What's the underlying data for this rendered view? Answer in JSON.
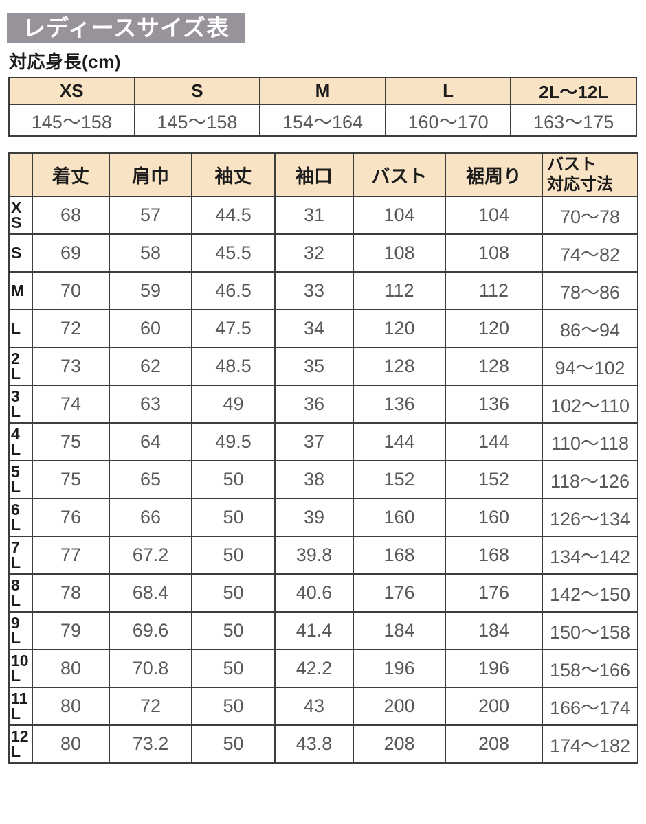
{
  "title": "レディースサイズ表",
  "colors": {
    "banner_bg": "#98939b",
    "banner_text": "#ffffff",
    "header_bg": "#f8e3c4",
    "border": "#3d3d3d",
    "value_text": "#595959",
    "label_text": "#1c1c1c",
    "page_bg": "#ffffff"
  },
  "height_table": {
    "heading": "対応身長(cm)",
    "columns": [
      "XS",
      "S",
      "M",
      "L",
      "2L～12L"
    ],
    "values": [
      "145～158",
      "145～158",
      "154～164",
      "160～170",
      "163～175"
    ]
  },
  "size_table": {
    "columns": [
      "",
      "着丈",
      "肩巾",
      "袖丈",
      "袖口",
      "バスト",
      "裾周り",
      "バスト\n対応寸法"
    ],
    "rows": [
      {
        "label": "X\nS",
        "values": [
          "68",
          "57",
          "44.5",
          "31",
          "104",
          "104",
          "70～78"
        ]
      },
      {
        "label": "S",
        "values": [
          "69",
          "58",
          "45.5",
          "32",
          "108",
          "108",
          "74～82"
        ]
      },
      {
        "label": "M",
        "values": [
          "70",
          "59",
          "46.5",
          "33",
          "112",
          "112",
          "78～86"
        ]
      },
      {
        "label": "L",
        "values": [
          "72",
          "60",
          "47.5",
          "34",
          "120",
          "120",
          "86～94"
        ]
      },
      {
        "label": "2\nL",
        "values": [
          "73",
          "62",
          "48.5",
          "35",
          "128",
          "128",
          "94～102"
        ]
      },
      {
        "label": "3\nL",
        "values": [
          "74",
          "63",
          "49",
          "36",
          "136",
          "136",
          "102～110"
        ]
      },
      {
        "label": "4\nL",
        "values": [
          "75",
          "64",
          "49.5",
          "37",
          "144",
          "144",
          "110～118"
        ]
      },
      {
        "label": "5\nL",
        "values": [
          "75",
          "65",
          "50",
          "38",
          "152",
          "152",
          "118～126"
        ]
      },
      {
        "label": "6\nL",
        "values": [
          "76",
          "66",
          "50",
          "39",
          "160",
          "160",
          "126～134"
        ]
      },
      {
        "label": "7\nL",
        "values": [
          "77",
          "67.2",
          "50",
          "39.8",
          "168",
          "168",
          "134～142"
        ]
      },
      {
        "label": "8\nL",
        "values": [
          "78",
          "68.4",
          "50",
          "40.6",
          "176",
          "176",
          "142～150"
        ]
      },
      {
        "label": "9\nL",
        "values": [
          "79",
          "69.6",
          "50",
          "41.4",
          "184",
          "184",
          "150～158"
        ]
      },
      {
        "label": "10\nL",
        "values": [
          "80",
          "70.8",
          "50",
          "42.2",
          "196",
          "196",
          "158～166"
        ]
      },
      {
        "label": "11\nL",
        "values": [
          "80",
          "72",
          "50",
          "43",
          "200",
          "200",
          "166～174"
        ]
      },
      {
        "label": "12\nL",
        "values": [
          "80",
          "73.2",
          "50",
          "43.8",
          "208",
          "208",
          "174～182"
        ]
      }
    ]
  }
}
